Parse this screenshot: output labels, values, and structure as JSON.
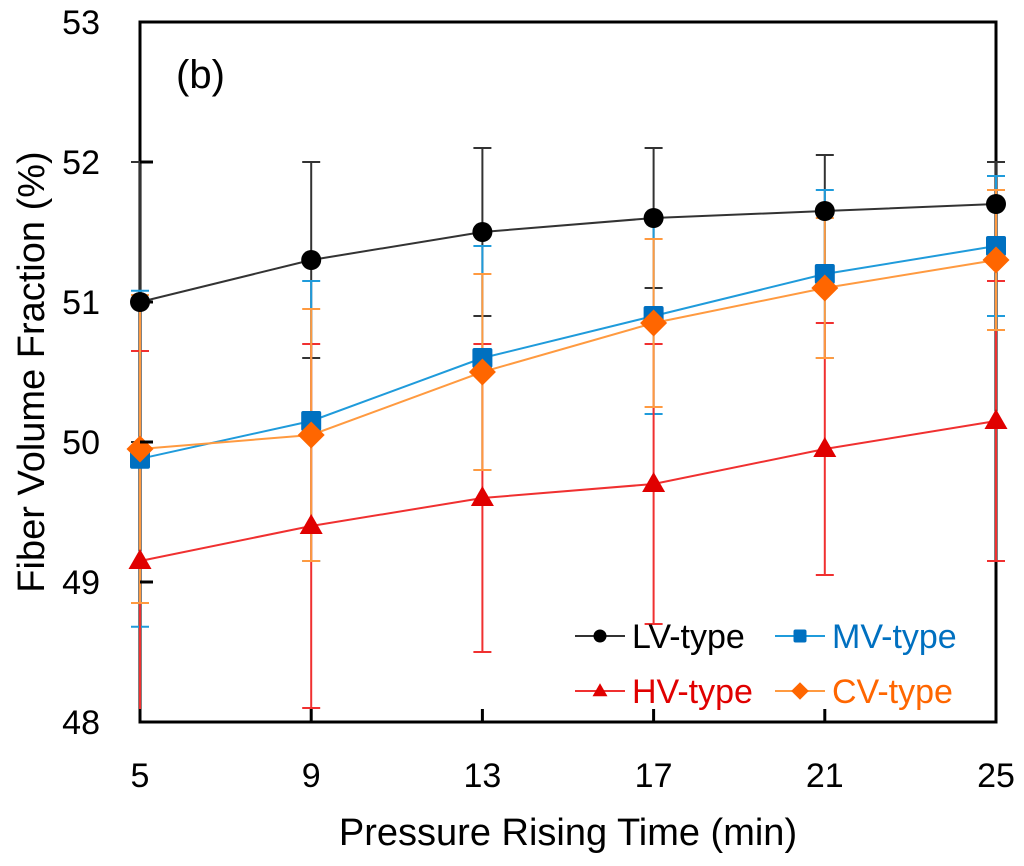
{
  "chart_data": {
    "type": "line",
    "title": "",
    "panel_label": "(b)",
    "xlabel": "Pressure Rising Time (min)",
    "ylabel": "Fiber Volume Fraction (%)",
    "x": [
      5,
      9,
      13,
      17,
      21,
      25
    ],
    "x_tick_labels": [
      "5",
      "9",
      "13",
      "17",
      "21",
      "25"
    ],
    "y_tick_labels": [
      "48",
      "49",
      "50",
      "51",
      "52",
      "53"
    ],
    "y_ticks": [
      48,
      49,
      50,
      51,
      52,
      53
    ],
    "xlim": [
      5,
      25
    ],
    "ylim": [
      48,
      53
    ],
    "grid": false,
    "legend_position": "bottom-right",
    "series": [
      {
        "name": "LV-type",
        "marker": "circle",
        "color": "#000000",
        "line_color": "#333333",
        "values": [
          51.0,
          51.3,
          51.5,
          51.6,
          51.65,
          51.7
        ],
        "error": [
          1.0,
          0.7,
          0.6,
          0.5,
          0.4,
          0.3
        ]
      },
      {
        "name": "MV-type",
        "marker": "square",
        "color": "#0070C0",
        "line_color": "#1F9BDB",
        "values": [
          49.88,
          50.15,
          50.6,
          50.9,
          51.2,
          51.4
        ],
        "error": [
          1.2,
          1.0,
          0.8,
          0.7,
          0.6,
          0.5
        ]
      },
      {
        "name": "HV-type",
        "marker": "triangle",
        "color": "#E00000",
        "line_color": "#F03030",
        "values": [
          49.15,
          49.4,
          49.6,
          49.7,
          49.95,
          50.15
        ],
        "error": [
          1.5,
          1.3,
          1.1,
          1.0,
          0.9,
          1.0
        ]
      },
      {
        "name": "CV-type",
        "marker": "diamond",
        "color": "#FF6600",
        "line_color": "#FF9A40",
        "values": [
          49.95,
          50.05,
          50.5,
          50.85,
          51.1,
          51.3
        ],
        "error": [
          1.1,
          0.9,
          0.7,
          0.6,
          0.5,
          0.5
        ]
      }
    ],
    "legend": [
      {
        "label": "LV-type",
        "color": "#000000"
      },
      {
        "label": "MV-type",
        "color": "#0070C0"
      },
      {
        "label": "HV-type",
        "color": "#E00000"
      },
      {
        "label": "CV-type",
        "color": "#FF6600"
      }
    ]
  }
}
